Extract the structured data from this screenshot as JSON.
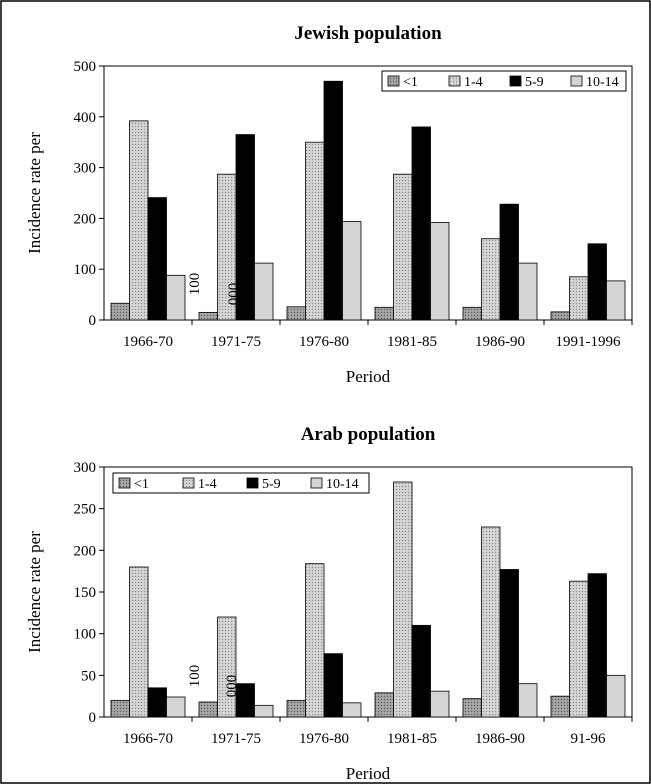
{
  "chart_data": [
    {
      "type": "bar",
      "title": "Jewish population",
      "xlabel": "Period",
      "ylabel": "Incidence rate per",
      "ylim": [
        0,
        500
      ],
      "yticks": [
        0,
        100,
        200,
        300,
        400,
        500
      ],
      "categories": [
        "1966-70",
        "1971-75",
        "1976-80",
        "1981-85",
        "1986-90",
        "1991-1996"
      ],
      "legend_position": "top-right",
      "stray_labels": [
        "100",
        "000"
      ],
      "series": [
        {
          "name": "<1",
          "color": "#9a9a9a",
          "pattern": "dark-dotted",
          "values": [
            33,
            15,
            26,
            25,
            25,
            16
          ]
        },
        {
          "name": "1-4",
          "color": "#c4c4c4",
          "pattern": "light-dotted",
          "values": [
            392,
            287,
            350,
            287,
            160,
            85
          ]
        },
        {
          "name": "5-9",
          "color": "#000000",
          "pattern": "solid",
          "values": [
            241,
            365,
            470,
            380,
            228,
            150
          ]
        },
        {
          "name": "10-14",
          "color": "#d4d4d4",
          "pattern": "solid",
          "values": [
            88,
            112,
            194,
            192,
            112,
            77
          ]
        }
      ]
    },
    {
      "type": "bar",
      "title": "Arab population",
      "xlabel": "Period",
      "ylabel": "Incidence rate per",
      "ylim": [
        0,
        300
      ],
      "yticks": [
        0,
        50,
        100,
        150,
        200,
        250,
        300
      ],
      "categories": [
        "1966-70",
        "1971-75",
        "1976-80",
        "1981-85",
        "1986-90",
        "91-96"
      ],
      "legend_position": "top-left",
      "stray_labels": [
        "100",
        "000"
      ],
      "series": [
        {
          "name": "<1",
          "color": "#9a9a9a",
          "pattern": "dark-dotted",
          "values": [
            20,
            18,
            20,
            29,
            22,
            25
          ]
        },
        {
          "name": "1-4",
          "color": "#c4c4c4",
          "pattern": "light-dotted",
          "values": [
            180,
            120,
            184,
            282,
            228,
            163
          ]
        },
        {
          "name": "5-9",
          "color": "#000000",
          "pattern": "solid",
          "values": [
            35,
            40,
            76,
            110,
            177,
            172
          ]
        },
        {
          "name": "10-14",
          "color": "#d4d4d4",
          "pattern": "solid",
          "values": [
            24,
            14,
            17,
            31,
            40,
            50
          ]
        }
      ]
    }
  ]
}
